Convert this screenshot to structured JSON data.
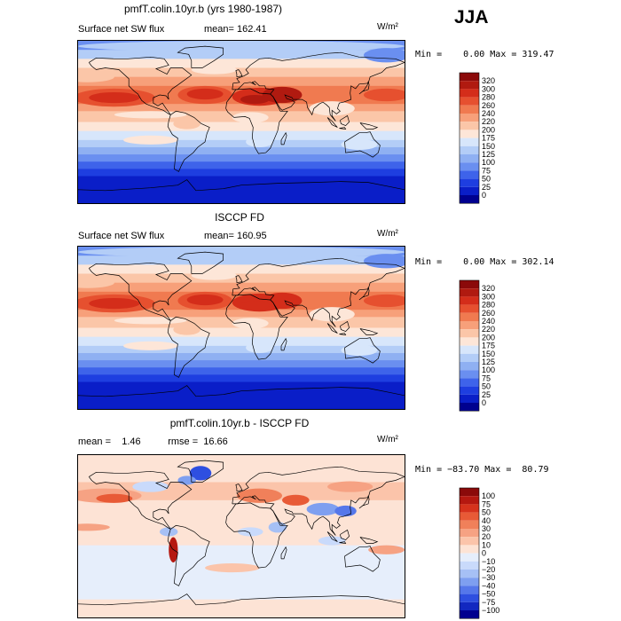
{
  "season": "JJA",
  "units": "W/m²",
  "chart_data": [
    {
      "type": "heatmap",
      "title": "pmfT.colin.10yr.b (yrs 1980-1987)",
      "variable": "Surface net SW flux",
      "stat_line": "mean= 162.41",
      "minmax": "Min =    0.00 Max = 319.47",
      "min": 0.0,
      "max": 319.47,
      "mean": 162.41,
      "colorbar_levels": [
        "320",
        "300",
        "280",
        "260",
        "240",
        "220",
        "200",
        "175",
        "150",
        "125",
        "100",
        "75",
        "50",
        "25",
        "0"
      ],
      "colorbar_colors": [
        "#8b0a0a",
        "#b01a10",
        "#d42d1a",
        "#e6502f",
        "#f07a50",
        "#f7a07a",
        "#fbc6a8",
        "#fde6d8",
        "#d7e6fb",
        "#b3cdf7",
        "#8fb0f2",
        "#6a8ff0",
        "#3e63ea",
        "#1e3ee0",
        "#0a1ec8",
        "#00008f"
      ],
      "regions": [
        {
          "name": "north-africa-mideast",
          "value": 300
        },
        {
          "name": "subtropical-pacific",
          "value": 280
        },
        {
          "name": "subtropical-atlantic",
          "value": 280
        },
        {
          "name": "equatorial-band",
          "value": 175
        },
        {
          "name": "southern-ocean",
          "value": 50
        },
        {
          "name": "antarctic",
          "value": 0
        }
      ]
    },
    {
      "type": "heatmap",
      "title": "ISCCP FD",
      "variable": "Surface net SW flux",
      "stat_line": "mean= 160.95",
      "minmax": "Min =    0.00 Max = 302.14",
      "min": 0.0,
      "max": 302.14,
      "mean": 160.95,
      "colorbar_levels": [
        "320",
        "300",
        "280",
        "260",
        "240",
        "220",
        "200",
        "175",
        "150",
        "125",
        "100",
        "75",
        "50",
        "25",
        "0"
      ],
      "colorbar_colors": [
        "#8b0a0a",
        "#b01a10",
        "#d42d1a",
        "#e6502f",
        "#f07a50",
        "#f7a07a",
        "#fbc6a8",
        "#fde6d8",
        "#d7e6fb",
        "#b3cdf7",
        "#8fb0f2",
        "#6a8ff0",
        "#3e63ea",
        "#1e3ee0",
        "#0a1ec8",
        "#00008f"
      ],
      "regions": [
        {
          "name": "north-africa-mideast",
          "value": 280
        },
        {
          "name": "subtropical-pacific",
          "value": 280
        },
        {
          "name": "subtropical-atlantic",
          "value": 280
        },
        {
          "name": "equatorial-band",
          "value": 175
        },
        {
          "name": "southern-ocean",
          "value": 50
        },
        {
          "name": "antarctic",
          "value": 0
        }
      ]
    },
    {
      "type": "heatmap",
      "title": "pmfT.colin.10yr.b - ISCCP FD",
      "stat_line": "mean =    1.46          rmse =  16.66",
      "minmax": "Min = −83.70 Max =  80.79",
      "min": -83.7,
      "max": 80.79,
      "mean": 1.46,
      "rmse": 16.66,
      "colorbar_levels": [
        "100",
        "75",
        "50",
        "40",
        "30",
        "20",
        "10",
        "0",
        "−10",
        "−20",
        "−30",
        "−40",
        "−50",
        "−75",
        "−100"
      ],
      "colorbar_colors": [
        "#8b0a0a",
        "#b51810",
        "#d6321c",
        "#e85a36",
        "#f0805a",
        "#f6a283",
        "#fbc4aa",
        "#fde3d5",
        "#e6eefb",
        "#c9dafb",
        "#a6c0f5",
        "#7e9ff0",
        "#5577ea",
        "#2e4fe0",
        "#1228c0",
        "#00008f"
      ],
      "regions": [
        {
          "name": "north-pacific",
          "value": 40
        },
        {
          "name": "east-asia",
          "value": -40
        },
        {
          "name": "greenland",
          "value": -75
        },
        {
          "name": "andes",
          "value": 75
        },
        {
          "name": "tropics",
          "value": 10
        },
        {
          "name": "southern-ocean",
          "value": -10
        }
      ]
    }
  ]
}
